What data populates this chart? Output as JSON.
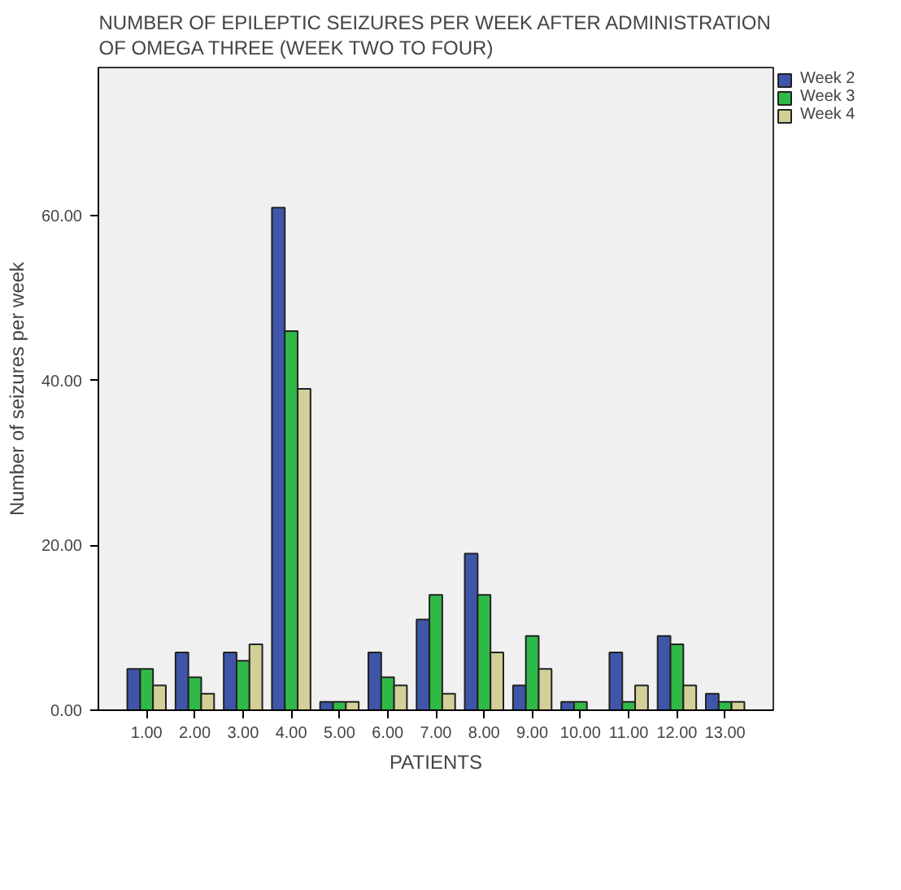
{
  "chart_data": {
    "type": "bar",
    "title": "NUMBER OF EPILEPTIC SEIZURES PER WEEK AFTER ADMINISTRATION\nOF OMEGA THREE (WEEK TWO TO  FOUR)",
    "xlabel": "PATIENTS",
    "ylabel": "Number of seizures per week",
    "categories": [
      "1.00",
      "2.00",
      "3.00",
      "4.00",
      "5.00",
      "6.00",
      "7.00",
      "8.00",
      "9.00",
      "10.00",
      "11.00",
      "12.00",
      "13.00"
    ],
    "series": [
      {
        "name": "Week 2",
        "color": "#3f56a8",
        "values": [
          5,
          7,
          7,
          61,
          1,
          7,
          11,
          19,
          3,
          1,
          7,
          9,
          2
        ]
      },
      {
        "name": "Week 3",
        "color": "#2fba48",
        "values": [
          5,
          4,
          6,
          46,
          1,
          4,
          14,
          14,
          9,
          1,
          1,
          8,
          1
        ]
      },
      {
        "name": "Week 4",
        "color": "#d3cf98",
        "values": [
          3,
          2,
          8,
          39,
          1,
          3,
          2,
          7,
          5,
          null,
          3,
          3,
          1
        ]
      }
    ],
    "ylim": [
      0,
      78
    ],
    "yticks": [
      {
        "value": 0,
        "label": "0.00"
      },
      {
        "value": 20,
        "label": "20.00"
      },
      {
        "value": 40,
        "label": "40.00"
      },
      {
        "value": 60,
        "label": "60.00"
      }
    ],
    "grid": false,
    "legend": "top right"
  }
}
